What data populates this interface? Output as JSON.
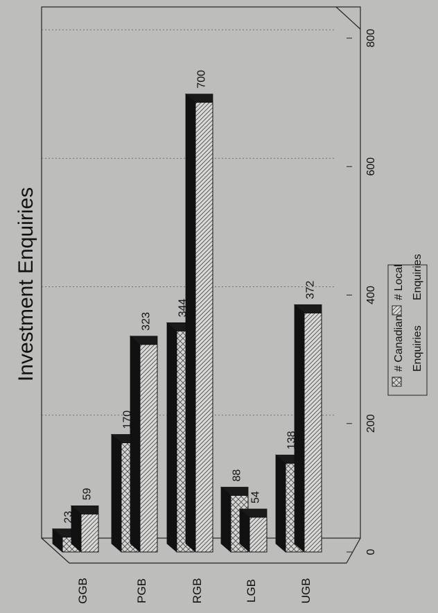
{
  "chart_data": {
    "type": "bar",
    "orientation": "horizontal (3D, page rotated 90°)",
    "title": "Investment Enquiries",
    "categories": [
      "GGB",
      "PGB",
      "RGB",
      "LGB",
      "UGB"
    ],
    "series": [
      {
        "name": "# Canadian Enquiries",
        "values": [
          23,
          170,
          344,
          88,
          138
        ],
        "pattern": "crosshatch"
      },
      {
        "name": "# Local Enquiries",
        "values": [
          59,
          323,
          700,
          54,
          372
        ],
        "pattern": "diagonal"
      }
    ],
    "xlim": [
      0,
      800
    ],
    "ticks": [
      0,
      200,
      400,
      600,
      800
    ],
    "grid": true,
    "legend_position": "bottom-right",
    "legend": [
      {
        "line1": "# Canadian",
        "line2": "Enquiries"
      },
      {
        "line1": "# Local",
        "line2": "Enquiries"
      }
    ],
    "colors": {
      "background": "#bdbebb",
      "bar_face": "#d8d8d6",
      "bar_side": "#1a1a1a"
    }
  }
}
